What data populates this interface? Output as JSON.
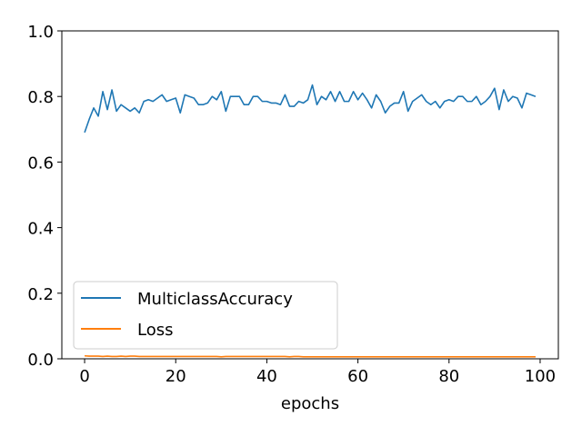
{
  "chart_data": {
    "type": "line",
    "title": "",
    "xlabel": "epochs",
    "ylabel": "",
    "xlim": [
      -5,
      104
    ],
    "ylim": [
      0,
      1.0
    ],
    "xticks": [
      0,
      20,
      40,
      60,
      80,
      100
    ],
    "xtick_labels": [
      "0",
      "20",
      "40",
      "60",
      "80",
      "100"
    ],
    "yticks": [
      0.0,
      0.2,
      0.4,
      0.6,
      0.8,
      1.0
    ],
    "ytick_labels": [
      "0.0",
      "0.2",
      "0.4",
      "0.6",
      "0.8",
      "1.0"
    ],
    "grid": false,
    "legend_position": "lower-left",
    "series": [
      {
        "name": "MulticlassAccuracy",
        "color": "#1f77b4",
        "x": [
          0,
          1,
          2,
          3,
          4,
          5,
          6,
          7,
          8,
          9,
          10,
          11,
          12,
          13,
          14,
          15,
          16,
          17,
          18,
          19,
          20,
          21,
          22,
          23,
          24,
          25,
          26,
          27,
          28,
          29,
          30,
          31,
          32,
          33,
          34,
          35,
          36,
          37,
          38,
          39,
          40,
          41,
          42,
          43,
          44,
          45,
          46,
          47,
          48,
          49,
          50,
          51,
          52,
          53,
          54,
          55,
          56,
          57,
          58,
          59,
          60,
          61,
          62,
          63,
          64,
          65,
          66,
          67,
          68,
          69,
          70,
          71,
          72,
          73,
          74,
          75,
          76,
          77,
          78,
          79,
          80,
          81,
          82,
          83,
          84,
          85,
          86,
          87,
          88,
          89,
          90,
          91,
          92,
          93,
          94,
          95,
          96,
          97,
          98,
          99
        ],
        "values": [
          0.69,
          0.73,
          0.765,
          0.74,
          0.815,
          0.76,
          0.82,
          0.755,
          0.775,
          0.765,
          0.755,
          0.765,
          0.75,
          0.785,
          0.79,
          0.785,
          0.795,
          0.805,
          0.785,
          0.79,
          0.795,
          0.75,
          0.805,
          0.8,
          0.795,
          0.775,
          0.775,
          0.78,
          0.8,
          0.79,
          0.815,
          0.755,
          0.8,
          0.8,
          0.8,
          0.775,
          0.775,
          0.8,
          0.8,
          0.785,
          0.785,
          0.78,
          0.78,
          0.775,
          0.805,
          0.77,
          0.77,
          0.785,
          0.78,
          0.79,
          0.835,
          0.775,
          0.8,
          0.79,
          0.815,
          0.785,
          0.815,
          0.785,
          0.785,
          0.815,
          0.79,
          0.81,
          0.79,
          0.765,
          0.805,
          0.785,
          0.75,
          0.77,
          0.78,
          0.78,
          0.815,
          0.755,
          0.785,
          0.795,
          0.805,
          0.785,
          0.775,
          0.785,
          0.765,
          0.785,
          0.79,
          0.785,
          0.8,
          0.8,
          0.785,
          0.785,
          0.8,
          0.775,
          0.785,
          0.8,
          0.825,
          0.76,
          0.82,
          0.785,
          0.8,
          0.795,
          0.765,
          0.81,
          0.805,
          0.8
        ]
      },
      {
        "name": "Loss",
        "color": "#ff7f0e",
        "x": [
          0,
          1,
          2,
          3,
          4,
          5,
          6,
          7,
          8,
          9,
          10,
          11,
          12,
          13,
          14,
          15,
          16,
          17,
          18,
          19,
          20,
          21,
          22,
          23,
          24,
          25,
          26,
          27,
          28,
          29,
          30,
          31,
          32,
          33,
          34,
          35,
          36,
          37,
          38,
          39,
          40,
          41,
          42,
          43,
          44,
          45,
          46,
          47,
          48,
          49,
          50,
          51,
          52,
          53,
          54,
          55,
          56,
          57,
          58,
          59,
          60,
          61,
          62,
          63,
          64,
          65,
          66,
          67,
          68,
          69,
          70,
          71,
          72,
          73,
          74,
          75,
          76,
          77,
          78,
          79,
          80,
          81,
          82,
          83,
          84,
          85,
          86,
          87,
          88,
          89,
          90,
          91,
          92,
          93,
          94,
          95,
          96,
          97,
          98,
          99
        ],
        "values": [
          0.009,
          0.008,
          0.008,
          0.008,
          0.007,
          0.008,
          0.007,
          0.007,
          0.008,
          0.007,
          0.008,
          0.008,
          0.007,
          0.007,
          0.007,
          0.007,
          0.007,
          0.007,
          0.007,
          0.007,
          0.007,
          0.007,
          0.007,
          0.007,
          0.007,
          0.007,
          0.007,
          0.007,
          0.007,
          0.007,
          0.006,
          0.007,
          0.007,
          0.007,
          0.007,
          0.007,
          0.007,
          0.007,
          0.007,
          0.007,
          0.007,
          0.007,
          0.007,
          0.007,
          0.007,
          0.006,
          0.007,
          0.007,
          0.006,
          0.006,
          0.006,
          0.006,
          0.006,
          0.006,
          0.006,
          0.006,
          0.006,
          0.006,
          0.006,
          0.006,
          0.006,
          0.006,
          0.006,
          0.006,
          0.006,
          0.006,
          0.006,
          0.006,
          0.006,
          0.006,
          0.006,
          0.006,
          0.006,
          0.006,
          0.006,
          0.006,
          0.006,
          0.006,
          0.006,
          0.006,
          0.006,
          0.006,
          0.006,
          0.006,
          0.006,
          0.006,
          0.006,
          0.006,
          0.006,
          0.006,
          0.006,
          0.006,
          0.006,
          0.006,
          0.006,
          0.006,
          0.006,
          0.006,
          0.006,
          0.006
        ]
      }
    ]
  }
}
